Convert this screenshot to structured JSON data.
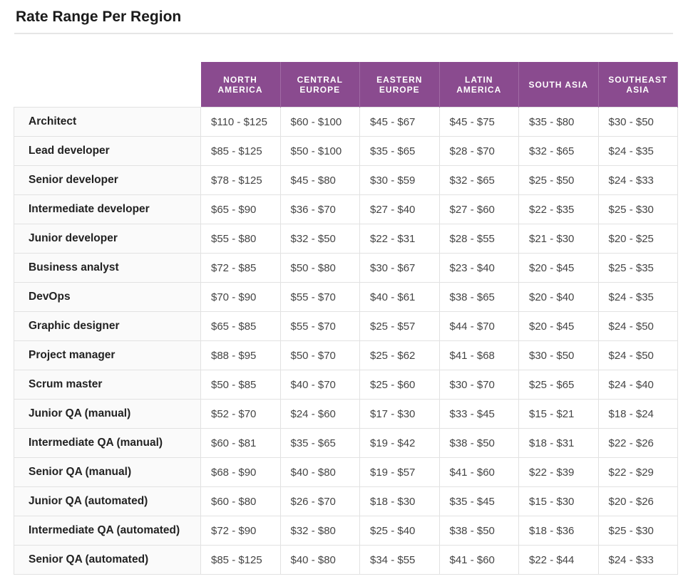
{
  "header": {
    "title": "Rate Range Per Region"
  },
  "table": {
    "columns": [
      "NORTH AMERICA",
      "CENTRAL EUROPE",
      "EASTERN EUROPE",
      "LATIN AMERICA",
      "SOUTH ASIA",
      "SOUTHEAST ASIA"
    ],
    "rows": [
      [
        "Architect",
        "$110 - $125",
        "$60 - $100",
        "$45 - $67",
        "$45 - $75",
        "$35 - $80",
        "$30 - $50"
      ],
      [
        "Lead developer",
        "$85 - $125",
        "$50 - $100",
        "$35 - $65",
        "$28 - $70",
        "$32 - $65",
        "$24 - $35"
      ],
      [
        "Senior developer",
        "$78 - $125",
        "$45 - $80",
        "$30 - $59",
        "$32 - $65",
        "$25 - $50",
        "$24 - $33"
      ],
      [
        "Intermediate developer",
        "$65 - $90",
        "$36 - $70",
        "$27 - $40",
        "$27 - $60",
        "$22 - $35",
        "$25 - $30"
      ],
      [
        "Junior developer",
        "$55 - $80",
        "$32 - $50",
        "$22 - $31",
        "$28 - $55",
        "$21 - $30",
        "$20 - $25"
      ],
      [
        "Business analyst",
        "$72 - $85",
        "$50 - $80",
        "$30 - $67",
        "$23 - $40",
        "$20 - $45",
        "$25 - $35"
      ],
      [
        "DevOps",
        "$70 - $90",
        "$55 - $70",
        "$40 - $61",
        "$38 - $65",
        "$20 - $40",
        "$24 - $35"
      ],
      [
        "Graphic designer",
        "$65 - $85",
        "$55 - $70",
        "$25 - $57",
        "$44 - $70",
        "$20 - $45",
        "$24 - $50"
      ],
      [
        "Project manager",
        "$88 - $95",
        "$50 - $70",
        "$25 - $62",
        "$41 - $68",
        "$30 - $50",
        "$24 - $50"
      ],
      [
        "Scrum master",
        "$50 - $85",
        "$40 - $70",
        "$25 - $60",
        "$30 - $70",
        "$25 - $65",
        "$24 - $40"
      ],
      [
        "Junior QA (manual)",
        "$52 - $70",
        "$24 - $60",
        "$17 - $30",
        "$33 - $45",
        "$15 - $21",
        "$18 - $24"
      ],
      [
        "Intermediate QA (manual)",
        "$60 - $81",
        "$35 - $65",
        "$19 - $42",
        "$38 - $50",
        "$18 - $31",
        "$22 - $26"
      ],
      [
        "Senior QA (manual)",
        "$68 - $90",
        "$40 - $80",
        "$19 - $57",
        "$41 - $60",
        "$22 - $39",
        "$22 - $29"
      ],
      [
        "Junior QA (automated)",
        "$60 - $80",
        "$26 - $70",
        "$18 - $30",
        "$35 - $45",
        "$15 - $30",
        "$20 - $26"
      ],
      [
        "Intermediate QA (automated)",
        "$72 - $90",
        "$32 - $80",
        "$25 - $40",
        "$38 - $50",
        "$18 - $36",
        "$25 - $30"
      ],
      [
        "Senior QA (automated)",
        "$85 - $125",
        "$40 - $80",
        "$34 - $55",
        "$41 - $60",
        "$22 - $44",
        "$24 - $33"
      ]
    ]
  }
}
